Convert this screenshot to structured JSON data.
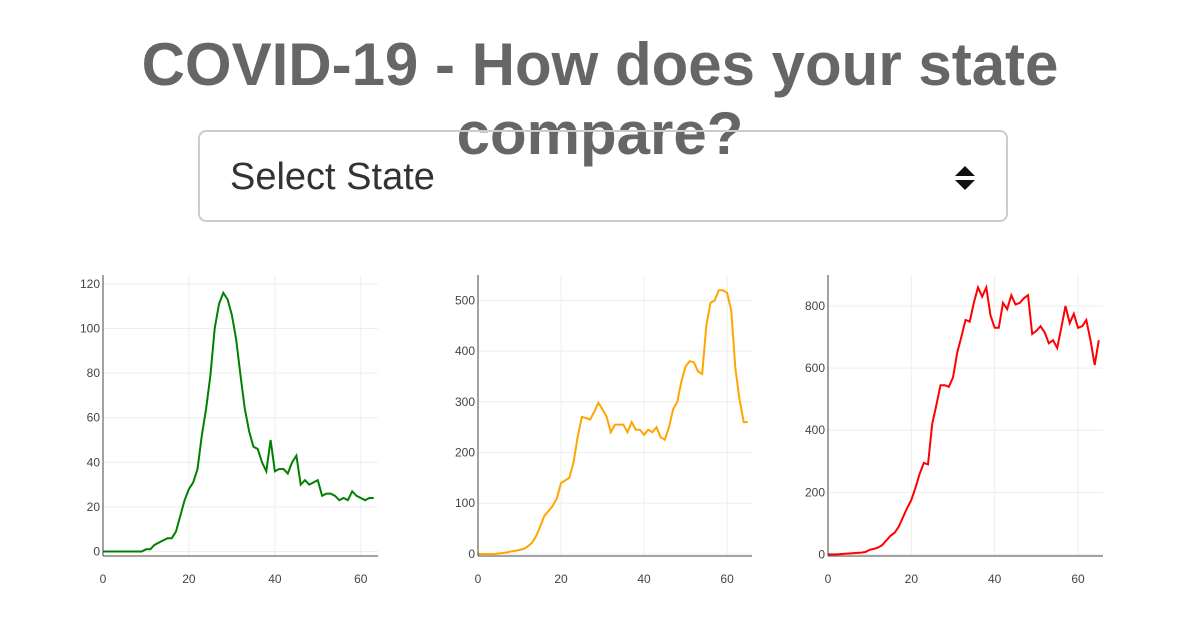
{
  "header": {
    "title": "COVID-19 - How does your state compare?"
  },
  "select": {
    "label": "Select State"
  },
  "chart_data": [
    {
      "type": "line",
      "color": "#008000",
      "grid": true,
      "x": [
        0,
        1,
        2,
        3,
        4,
        5,
        6,
        7,
        8,
        9,
        10,
        11,
        12,
        13,
        14,
        15,
        16,
        17,
        18,
        19,
        20,
        21,
        22,
        23,
        24,
        25,
        26,
        27,
        28,
        29,
        30,
        31,
        32,
        33,
        34,
        35,
        36,
        37,
        38,
        39,
        40,
        41,
        42,
        43,
        44,
        45,
        46,
        47,
        48,
        49,
        50,
        51,
        52,
        53,
        54,
        55,
        56,
        57,
        58,
        59,
        60,
        61,
        62,
        63
      ],
      "values": [
        0,
        0,
        0,
        0,
        0,
        0,
        0,
        0,
        0,
        0,
        1,
        1,
        3,
        4,
        5,
        6,
        6,
        9,
        16,
        23,
        28,
        31,
        37,
        52,
        64,
        79,
        100,
        111,
        116,
        113,
        106,
        95,
        79,
        64,
        54,
        47,
        46,
        40,
        36,
        50,
        36,
        37,
        37,
        35,
        40,
        43,
        30,
        32,
        30,
        31,
        32,
        25,
        26,
        26,
        25,
        23,
        24,
        23,
        27,
        25,
        24,
        23,
        24,
        24
      ],
      "xlim": [
        0,
        64
      ],
      "ylim": [
        -2,
        124
      ],
      "xticks": [
        0,
        20,
        40,
        60
      ],
      "yticks": [
        0,
        20,
        40,
        60,
        80,
        100,
        120
      ]
    },
    {
      "type": "line",
      "color": "#ffa500",
      "grid": true,
      "x": [
        0,
        1,
        2,
        3,
        4,
        5,
        6,
        7,
        8,
        9,
        10,
        11,
        12,
        13,
        14,
        15,
        16,
        17,
        18,
        19,
        20,
        21,
        22,
        23,
        24,
        25,
        26,
        27,
        28,
        29,
        30,
        31,
        32,
        33,
        34,
        35,
        36,
        37,
        38,
        39,
        40,
        41,
        42,
        43,
        44,
        45,
        46,
        47,
        48,
        49,
        50,
        51,
        52,
        53,
        54,
        55,
        56,
        57,
        58,
        59,
        60,
        61,
        62,
        63,
        64,
        65
      ],
      "values": [
        0,
        0,
        0,
        0,
        0,
        1,
        2,
        3,
        5,
        6,
        8,
        10,
        15,
        22,
        35,
        55,
        75,
        85,
        95,
        110,
        140,
        145,
        150,
        180,
        230,
        270,
        268,
        265,
        280,
        298,
        285,
        270,
        240,
        255,
        255,
        255,
        240,
        260,
        245,
        245,
        235,
        245,
        240,
        250,
        230,
        225,
        250,
        285,
        300,
        340,
        370,
        380,
        378,
        360,
        355,
        450,
        495,
        500,
        520,
        520,
        515,
        480,
        365,
        305,
        260,
        260
      ],
      "xlim": [
        0,
        66
      ],
      "ylim": [
        -4,
        550
      ],
      "xticks": [
        0,
        20,
        40,
        60
      ],
      "yticks": [
        0,
        100,
        200,
        300,
        400,
        500
      ]
    },
    {
      "type": "line",
      "color": "#ff0000",
      "grid": true,
      "x": [
        0,
        1,
        2,
        3,
        4,
        5,
        6,
        7,
        8,
        9,
        10,
        11,
        12,
        13,
        14,
        15,
        16,
        17,
        18,
        19,
        20,
        21,
        22,
        23,
        24,
        25,
        26,
        27,
        28,
        29,
        30,
        31,
        32,
        33,
        34,
        35,
        36,
        37,
        38,
        39,
        40,
        41,
        42,
        43,
        44,
        45,
        46,
        47,
        48,
        49,
        50,
        51,
        52,
        53,
        54,
        55,
        56,
        57,
        58,
        59,
        60,
        61,
        62,
        63,
        64,
        65
      ],
      "values": [
        0,
        0,
        0,
        1,
        2,
        3,
        4,
        5,
        6,
        8,
        15,
        18,
        22,
        30,
        45,
        60,
        70,
        90,
        120,
        150,
        175,
        215,
        260,
        295,
        290,
        420,
        480,
        545,
        545,
        540,
        570,
        650,
        700,
        755,
        750,
        810,
        860,
        830,
        860,
        770,
        730,
        730,
        810,
        790,
        835,
        805,
        810,
        825,
        835,
        710,
        720,
        735,
        715,
        680,
        690,
        665,
        730,
        800,
        745,
        775,
        730,
        735,
        755,
        690,
        610,
        690
      ],
      "xlim": [
        0,
        66
      ],
      "ylim": [
        -5,
        900
      ],
      "xticks": [
        0,
        20,
        40,
        60
      ],
      "yticks": [
        0,
        200,
        400,
        600,
        800
      ]
    }
  ]
}
